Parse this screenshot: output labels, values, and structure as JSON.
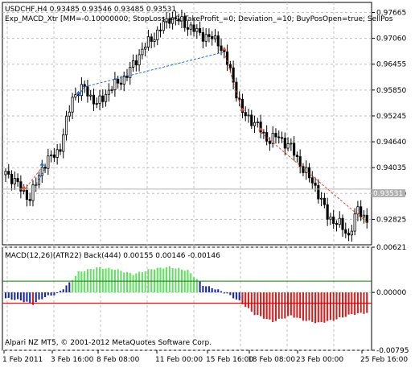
{
  "main_panel": {
    "symbol_line": "USDCHF,H4  0.93485 0.93546 0.93485 0.93531",
    "expert_line": "Exp_MACD_Xtr [MM=-0.10000000; StopLoss_=0; TakeProfit_=0; Deviation_=10; BuyPosOpen=true; SellPos",
    "bid_tag": "0.93531",
    "price_ticks": [
      "0.97665",
      "0.97060",
      "0.96455",
      "0.95850",
      "0.95245",
      "0.94640",
      "0.94035",
      "0.93430",
      "0.92825"
    ]
  },
  "indicator_panel": {
    "title": "MACD(12,26)(ATR22) Back(444) 0.00155 0.00146 -0.00146",
    "value_ticks": [
      "0.00621",
      "0.00000",
      "-0.00795"
    ],
    "copyright": "Alpari NZ MT5, © 2001-2012 MetaQuotes Software Corp."
  },
  "time_axis": {
    "labels": [
      "1 Feb 2011",
      "3 Feb 16:00",
      "8 Feb 08:00",
      "11 Feb 00:00",
      "15 Feb 16:00",
      "18 Feb 08:00",
      "23 Feb 00:00",
      "25 Feb 16:00"
    ]
  },
  "chart_data": [
    {
      "type": "candlestick",
      "series_name": "USDCHF,H4",
      "ylim": [
        0.9223,
        0.979
      ],
      "y_ticks": [
        0.97665,
        0.9706,
        0.96455,
        0.9585,
        0.95245,
        0.9464,
        0.94035,
        0.9343,
        0.92825
      ],
      "x_labels": [
        "1 Feb 2011",
        "3 Feb 16:00",
        "8 Feb 08:00",
        "11 Feb 00:00",
        "15 Feb 16:00",
        "18 Feb 08:00",
        "23 Feb 00:00",
        "25 Feb 16:00"
      ],
      "bar_count": 120,
      "close_path_anchors": [
        [
          0,
          0.9395
        ],
        [
          8,
          0.933
        ],
        [
          12,
          0.9405
        ],
        [
          18,
          0.945
        ],
        [
          22,
          0.957
        ],
        [
          26,
          0.959
        ],
        [
          30,
          0.955
        ],
        [
          34,
          0.9585
        ],
        [
          40,
          0.962
        ],
        [
          45,
          0.968
        ],
        [
          50,
          0.972
        ],
        [
          54,
          0.9755
        ],
        [
          58,
          0.9745
        ],
        [
          62,
          0.9725
        ],
        [
          66,
          0.971
        ],
        [
          70,
          0.97
        ],
        [
          74,
          0.963
        ],
        [
          78,
          0.953
        ],
        [
          82,
          0.951
        ],
        [
          86,
          0.947
        ],
        [
          90,
          0.9475
        ],
        [
          94,
          0.945
        ],
        [
          98,
          0.94
        ],
        [
          102,
          0.936
        ],
        [
          106,
          0.929
        ],
        [
          110,
          0.927
        ],
        [
          113,
          0.9245
        ],
        [
          116,
          0.9305
        ],
        [
          119,
          0.9282
        ]
      ],
      "last_close": 0.93531,
      "grid": true
    },
    {
      "type": "histogram",
      "series_name": "MACD(12,26)(ATR22) Back(444)",
      "ylim": [
        -0.00795,
        0.00621
      ],
      "y_ticks": [
        0.00621,
        0.0,
        -0.00795
      ],
      "upper_level": 0.00155,
      "lower_level": -0.00146,
      "histogram_path_anchors": [
        [
          0,
          -0.0008
        ],
        [
          5,
          -0.0011
        ],
        [
          9,
          -0.0016
        ],
        [
          13,
          -0.0006
        ],
        [
          17,
          -0.0002
        ],
        [
          21,
          0.0013
        ],
        [
          24,
          0.0028
        ],
        [
          30,
          0.0034
        ],
        [
          36,
          0.0032
        ],
        [
          42,
          0.0025
        ],
        [
          48,
          0.0032
        ],
        [
          54,
          0.0035
        ],
        [
          60,
          0.003
        ],
        [
          65,
          0.001
        ],
        [
          69,
          0.0005
        ],
        [
          73,
          -0.0002
        ],
        [
          77,
          -0.0012
        ],
        [
          82,
          -0.003
        ],
        [
          88,
          -0.004
        ],
        [
          94,
          -0.0032
        ],
        [
          98,
          -0.0038
        ],
        [
          103,
          -0.0042
        ],
        [
          108,
          -0.0038
        ],
        [
          114,
          -0.003
        ],
        [
          119,
          -0.0028
        ]
      ],
      "grid": true
    }
  ],
  "colors": {
    "bull_bar": "#7CFC00",
    "bull_hist": "#66dd66",
    "bear_hist": "#cc2222",
    "neutral_hist": "#1a2a9a",
    "upper_line": "#008000",
    "lower_line": "#cc0000",
    "grid": "#c0c0c0",
    "bid_line": "#b0b0b0",
    "trend_blue": "#1e6fd9",
    "trend_red": "#d9503a"
  }
}
